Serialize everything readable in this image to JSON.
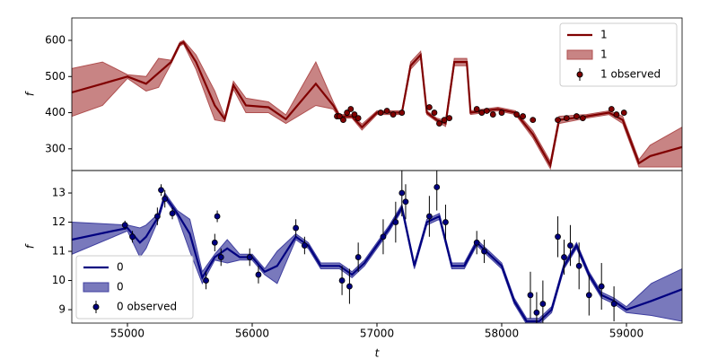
{
  "chart_data": [
    {
      "type": "line",
      "ylabel": "f",
      "xlim": [
        54554,
        59446
      ],
      "ylim": [
        240,
        662
      ],
      "yticks": [
        300,
        400,
        500,
        600
      ],
      "legend": "upper right",
      "x": [
        54554,
        54800,
        55000,
        55150,
        55250,
        55350,
        55420,
        55450,
        55550,
        55700,
        55780,
        55850,
        55950,
        56130,
        56270,
        56510,
        56650,
        56700,
        56800,
        56880,
        57000,
        57200,
        57270,
        57350,
        57400,
        57480,
        57550,
        57620,
        57720,
        57750,
        57970,
        58110,
        58250,
        58390,
        58460,
        58680,
        58860,
        58970,
        59100,
        59190,
        59446
      ],
      "series": [
        {
          "name": "1",
          "type": "line",
          "color": "#800000",
          "values": [
            456,
            480,
            500,
            480,
            510,
            540,
            590,
            595,
            540,
            420,
            382,
            476,
            420,
            415,
            382,
            480,
            420,
            390,
            390,
            360,
            400,
            400,
            530,
            560,
            400,
            380,
            370,
            540,
            540,
            400,
            410,
            400,
            340,
            255,
            380,
            390,
            400,
            380,
            260,
            280,
            305
          ]
        },
        {
          "name": "1",
          "type": "band",
          "color": "#b05050",
          "lower": [
            390,
            420,
            495,
            460,
            470,
            535,
            585,
            590,
            520,
            380,
            375,
            465,
            400,
            400,
            370,
            420,
            410,
            385,
            385,
            352,
            395,
            395,
            520,
            550,
            395,
            375,
            362,
            530,
            530,
            395,
            405,
            395,
            330,
            245,
            370,
            385,
            395,
            370,
            250,
            250,
            250
          ]
        },
        {
          "name": "1 observed",
          "type": "errorbar",
          "color": "#800000",
          "x": [
            56680,
            56700,
            56730,
            56760,
            56790,
            56820,
            56850,
            57030,
            57080,
            57130,
            57200,
            57420,
            57460,
            57500,
            57540,
            57580,
            57800,
            57840,
            57880,
            57930,
            58000,
            58120,
            58170,
            58250,
            58450,
            58520,
            58600,
            58650,
            58880,
            58920,
            58980
          ],
          "values": [
            390,
            390,
            380,
            400,
            410,
            395,
            385,
            400,
            405,
            395,
            400,
            415,
            400,
            370,
            380,
            385,
            410,
            400,
            405,
            395,
            400,
            395,
            390,
            380,
            380,
            385,
            390,
            385,
            410,
            395,
            400
          ],
          "errors": [
            5,
            5,
            5,
            5,
            5,
            5,
            5,
            5,
            5,
            5,
            5,
            5,
            5,
            5,
            5,
            5,
            5,
            5,
            5,
            5,
            5,
            5,
            5,
            5,
            5,
            5,
            5,
            5,
            5,
            5,
            5
          ]
        }
      ]
    },
    {
      "type": "line",
      "ylabel": "f",
      "xlabel": "t",
      "xlim": [
        54554,
        59446
      ],
      "ylim": [
        8.54,
        13.77
      ],
      "yticks": [
        9,
        10,
        11,
        12,
        13
      ],
      "xticks": [
        55000,
        56000,
        57000,
        58000,
        59000
      ],
      "legend": "lower left",
      "x": [
        54554,
        55000,
        55100,
        55150,
        55250,
        55300,
        55400,
        55500,
        55600,
        55700,
        55800,
        55900,
        56000,
        56100,
        56200,
        56350,
        56450,
        56550,
        56700,
        56800,
        56900,
        57000,
        57100,
        57200,
        57300,
        57400,
        57500,
        57600,
        57700,
        57800,
        57900,
        58000,
        58100,
        58200,
        58300,
        58400,
        58500,
        58600,
        58700,
        58800,
        58900,
        59000,
        59200,
        59446
      ],
      "series": [
        {
          "name": "0",
          "type": "line",
          "color": "#000080",
          "values": [
            11.4,
            11.8,
            11.3,
            11.5,
            12.2,
            12.9,
            12.3,
            11.6,
            10.1,
            10.8,
            11.1,
            10.8,
            10.8,
            10.3,
            10.5,
            11.5,
            11.2,
            10.5,
            10.5,
            10.2,
            10.6,
            11.2,
            11.8,
            12.5,
            10.5,
            12.0,
            12.2,
            10.5,
            10.5,
            11.3,
            10.9,
            10.5,
            9.3,
            8.6,
            8.6,
            9.0,
            10.5,
            11.2,
            10.2,
            9.5,
            9.3,
            9.0,
            9.3,
            9.7
          ]
        },
        {
          "name": "0",
          "type": "band",
          "color": "#4040a0",
          "lower": [
            10.9,
            11.7,
            10.8,
            11.1,
            12.1,
            12.8,
            12.2,
            11.0,
            9.9,
            10.7,
            10.6,
            10.7,
            10.7,
            10.2,
            9.9,
            11.4,
            11.1,
            10.4,
            10.4,
            10.1,
            10.5,
            11.1,
            11.7,
            12.4,
            10.4,
            11.9,
            12.1,
            10.4,
            10.4,
            11.2,
            10.8,
            10.4,
            9.2,
            8.5,
            8.5,
            8.9,
            10.4,
            11.1,
            10.1,
            9.4,
            9.2,
            8.9,
            8.8,
            8.6
          ],
          "upper": [
            12.0,
            11.9,
            11.8,
            11.9,
            12.3,
            13.0,
            12.4,
            12.1,
            10.3,
            10.9,
            11.4,
            10.9,
            10.9,
            10.4,
            11.0,
            11.6,
            11.3,
            10.6,
            10.6,
            10.3,
            10.7,
            11.3,
            11.9,
            12.6,
            10.6,
            12.1,
            12.3,
            10.6,
            10.6,
            11.4,
            11.0,
            10.6,
            9.4,
            8.7,
            8.7,
            9.1,
            10.6,
            11.3,
            10.3,
            9.6,
            9.4,
            9.1,
            9.9,
            10.4
          ]
        },
        {
          "name": "0 observed",
          "type": "errorbar",
          "color": "#000080",
          "x": [
            54980,
            55040,
            55240,
            55270,
            55300,
            55360,
            55630,
            55700,
            55720,
            55750,
            55980,
            56050,
            56350,
            56420,
            56720,
            56780,
            56850,
            57050,
            57150,
            57200,
            57230,
            57420,
            57480,
            57550,
            57800,
            57860,
            58230,
            58280,
            58330,
            58450,
            58500,
            58550,
            58620,
            58700,
            58800,
            58900
          ],
          "values": [
            11.9,
            11.5,
            12.2,
            13.1,
            12.8,
            12.3,
            10.0,
            11.3,
            12.2,
            10.8,
            10.8,
            10.2,
            11.8,
            11.2,
            10.0,
            9.8,
            10.8,
            11.5,
            12.0,
            13.0,
            12.7,
            12.2,
            13.2,
            12.0,
            11.3,
            11.0,
            9.5,
            8.9,
            9.2,
            11.5,
            10.8,
            11.2,
            10.5,
            9.5,
            9.8,
            9.2
          ],
          "errors": [
            0.15,
            0.2,
            0.3,
            0.2,
            0.3,
            0.2,
            0.3,
            0.3,
            0.2,
            0.3,
            0.3,
            0.3,
            0.3,
            0.3,
            0.5,
            0.6,
            0.5,
            0.6,
            0.7,
            0.8,
            0.6,
            0.7,
            0.8,
            0.6,
            0.4,
            0.4,
            0.8,
            0.7,
            0.8,
            0.7,
            0.6,
            0.7,
            0.8,
            0.7,
            0.8,
            0.6
          ]
        }
      ]
    }
  ]
}
